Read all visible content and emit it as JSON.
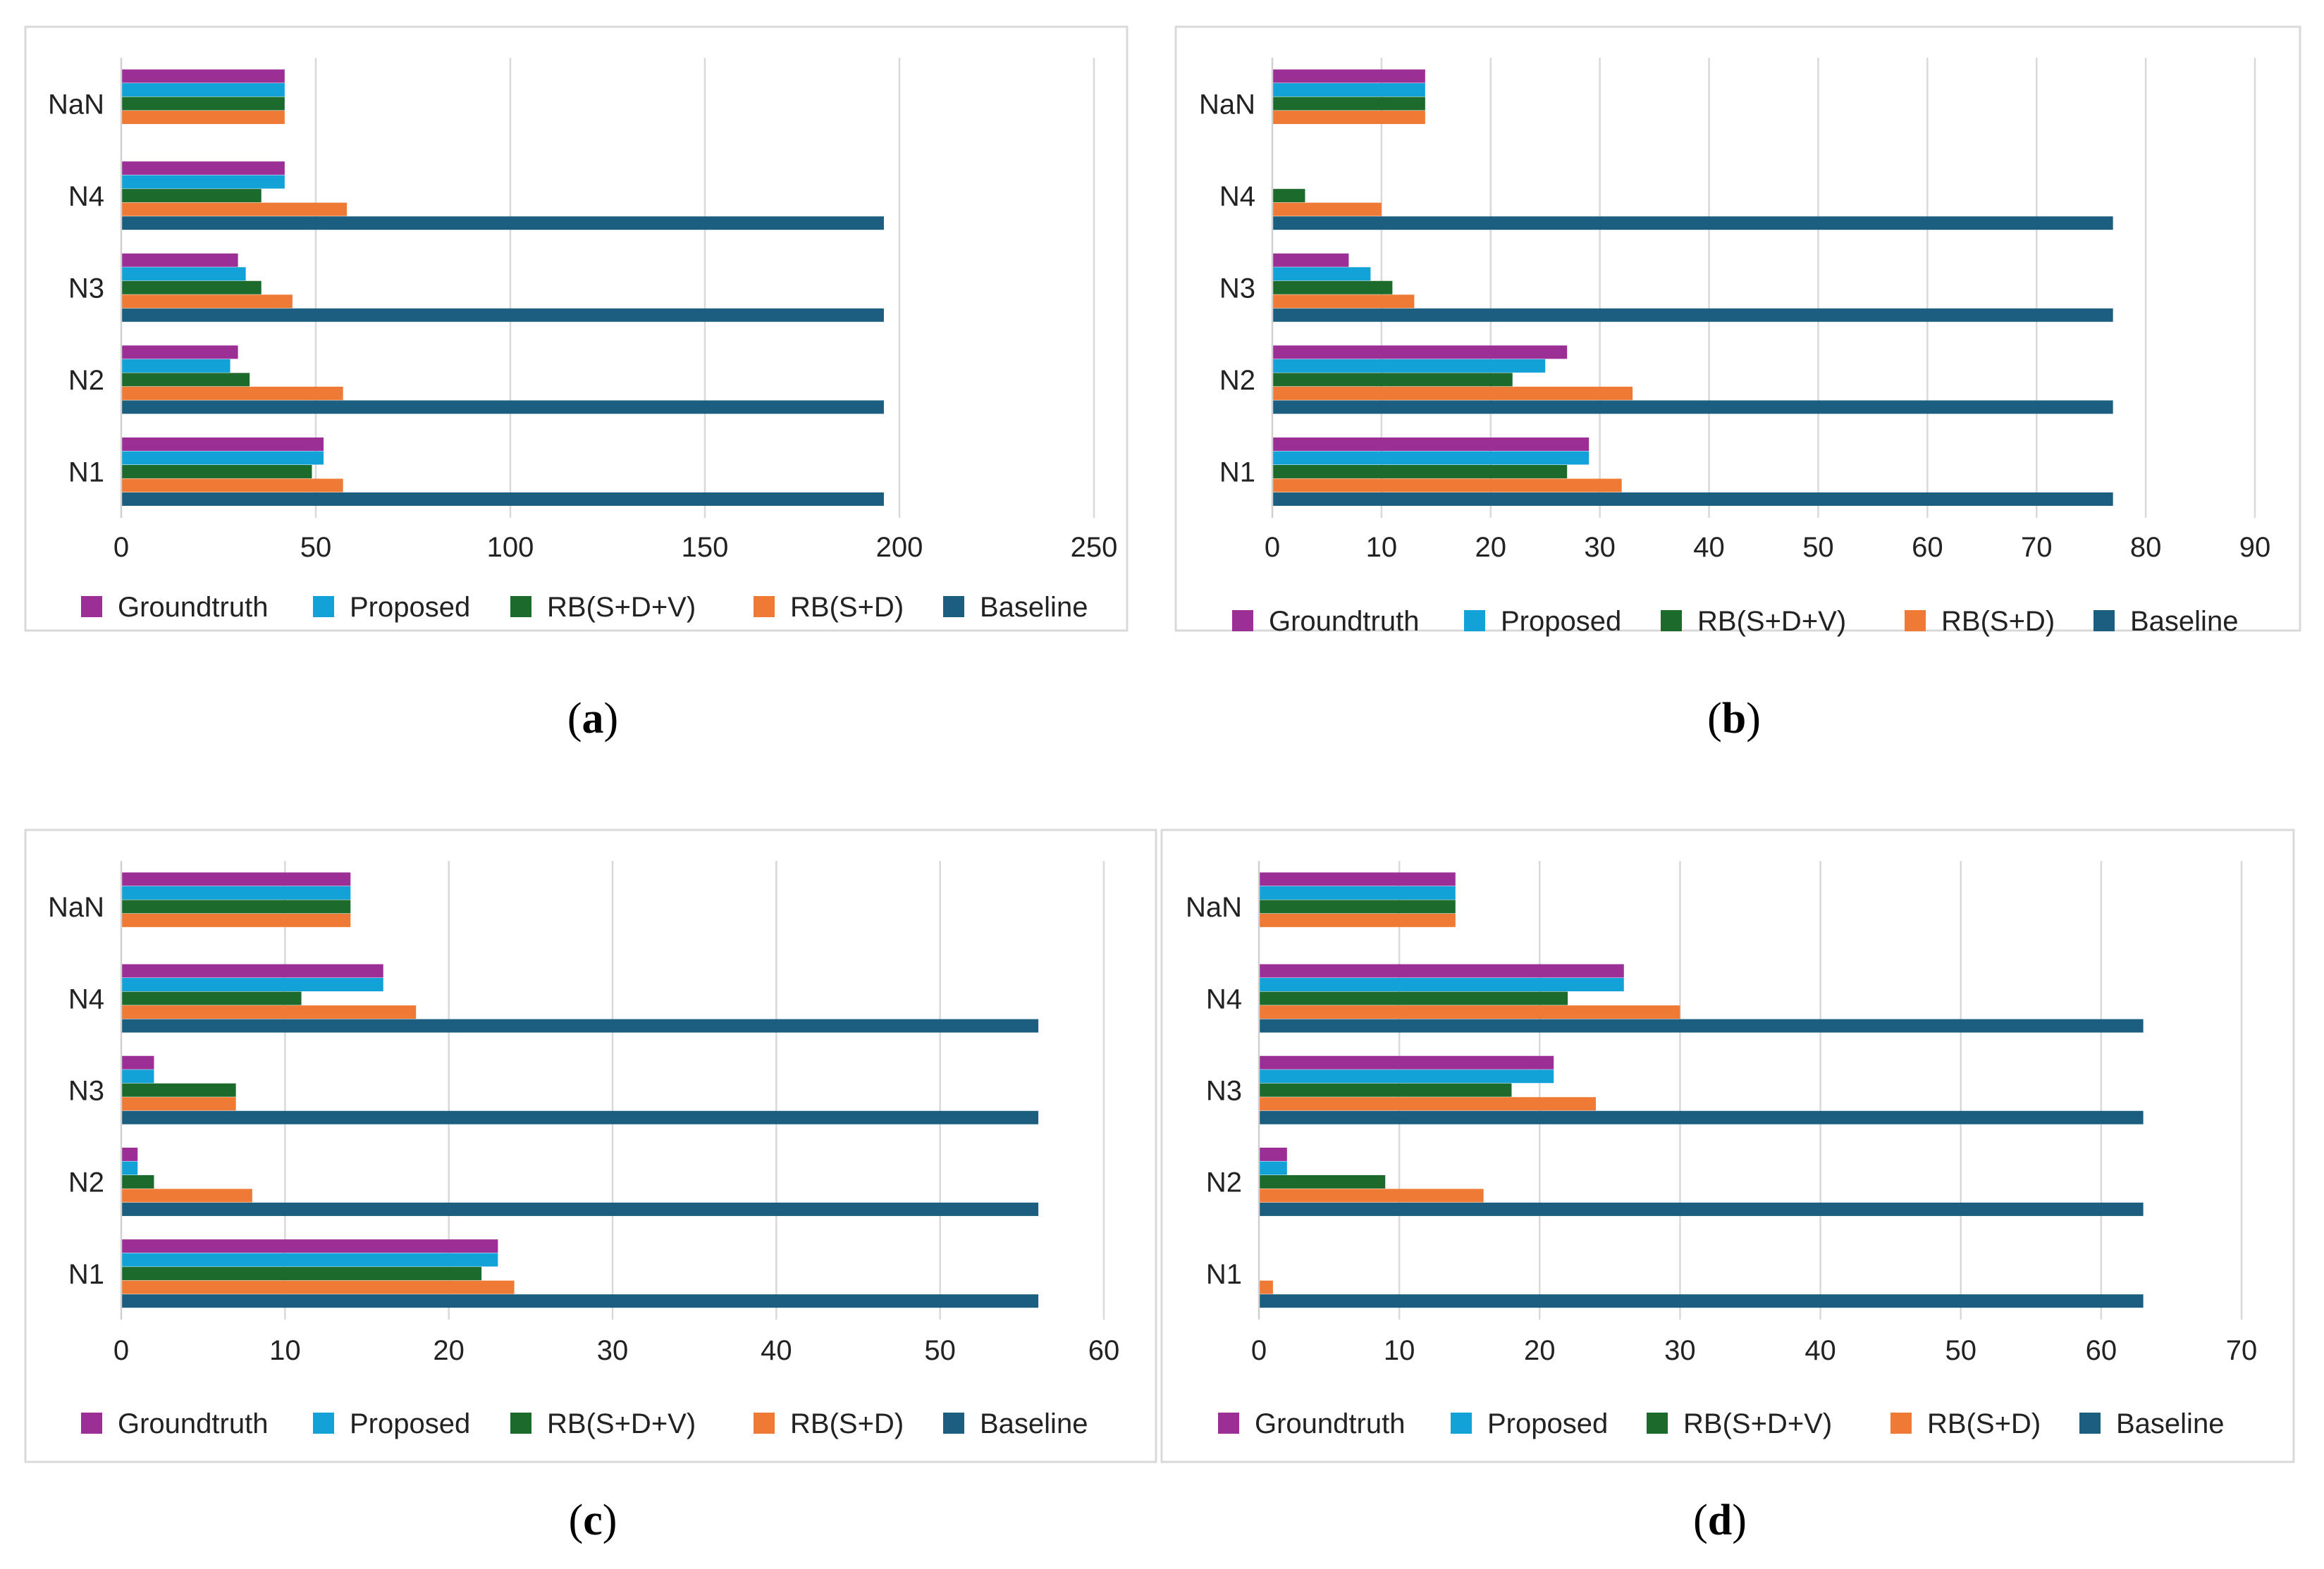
{
  "legend_colors": {
    "Groundtruth": "#9B2F95",
    "Proposed": "#12A2D8",
    "RB(S+D+V)": "#1C6B2C",
    "RB(S+D)": "#EE7A35",
    "Baseline": "#1B5E80"
  },
  "chart_data": [
    {
      "panel": "a",
      "caption_letter": "a",
      "type": "bar",
      "orientation": "horizontal",
      "categories": [
        "NaN",
        "N4",
        "N3",
        "N2",
        "N1"
      ],
      "series": [
        {
          "name": "Groundtruth",
          "values": [
            42,
            42,
            30,
            30,
            52
          ]
        },
        {
          "name": "Proposed",
          "values": [
            42,
            42,
            32,
            28,
            52
          ]
        },
        {
          "name": "RB(S+D+V)",
          "values": [
            42,
            36,
            36,
            33,
            49
          ]
        },
        {
          "name": "RB(S+D)",
          "values": [
            42,
            58,
            44,
            57,
            57
          ]
        },
        {
          "name": "Baseline",
          "values": [
            null,
            196,
            196,
            196,
            196
          ]
        }
      ],
      "xlim": [
        0,
        250
      ],
      "xticks": [
        "0",
        "50",
        "100",
        "150",
        "200",
        "250"
      ],
      "grid": true,
      "legend_position": "bottom"
    },
    {
      "panel": "b",
      "caption_letter": "b",
      "type": "bar",
      "orientation": "horizontal",
      "categories": [
        "NaN",
        "N4",
        "N3",
        "N2",
        "N1"
      ],
      "series": [
        {
          "name": "Groundtruth",
          "values": [
            14,
            0,
            7,
            27,
            29
          ]
        },
        {
          "name": "Proposed",
          "values": [
            14,
            0,
            9,
            25,
            29
          ]
        },
        {
          "name": "RB(S+D+V)",
          "values": [
            14,
            3,
            11,
            22,
            27
          ]
        },
        {
          "name": "RB(S+D)",
          "values": [
            14,
            10,
            13,
            33,
            32
          ]
        },
        {
          "name": "Baseline",
          "values": [
            null,
            77,
            77,
            77,
            77
          ]
        }
      ],
      "xlim": [
        0,
        90
      ],
      "xticks": [
        "0",
        "10",
        "20",
        "30",
        "40",
        "50",
        "60",
        "70",
        "80",
        "90"
      ],
      "grid": true,
      "legend_position": "bottom"
    },
    {
      "panel": "c",
      "caption_letter": "c",
      "type": "bar",
      "orientation": "horizontal",
      "categories": [
        "NaN",
        "N4",
        "N3",
        "N2",
        "N1"
      ],
      "series": [
        {
          "name": "Groundtruth",
          "values": [
            14,
            16,
            2,
            1,
            23
          ]
        },
        {
          "name": "Proposed",
          "values": [
            14,
            16,
            2,
            1,
            23
          ]
        },
        {
          "name": "RB(S+D+V)",
          "values": [
            14,
            11,
            7,
            2,
            22
          ]
        },
        {
          "name": "RB(S+D)",
          "values": [
            14,
            18,
            7,
            8,
            24
          ]
        },
        {
          "name": "Baseline",
          "values": [
            null,
            56,
            56,
            56,
            56
          ]
        }
      ],
      "xlim": [
        0,
        60
      ],
      "xticks": [
        "0",
        "10",
        "20",
        "30",
        "40",
        "50",
        "60"
      ],
      "grid": true,
      "legend_position": "bottom"
    },
    {
      "panel": "d",
      "caption_letter": "d",
      "type": "bar",
      "orientation": "horizontal",
      "categories": [
        "NaN",
        "N4",
        "N3",
        "N2",
        "N1"
      ],
      "series": [
        {
          "name": "Groundtruth",
          "values": [
            14,
            26,
            21,
            2,
            0
          ]
        },
        {
          "name": "Proposed",
          "values": [
            14,
            26,
            21,
            2,
            0
          ]
        },
        {
          "name": "RB(S+D+V)",
          "values": [
            14,
            22,
            18,
            9,
            0
          ]
        },
        {
          "name": "RB(S+D)",
          "values": [
            14,
            30,
            24,
            16,
            1
          ]
        },
        {
          "name": "Baseline",
          "values": [
            null,
            63,
            63,
            63,
            63
          ]
        }
      ],
      "xlim": [
        0,
        70
      ],
      "xticks": [
        "0",
        "10",
        "20",
        "30",
        "40",
        "50",
        "60",
        "70"
      ],
      "grid": true,
      "legend_position": "bottom"
    }
  ]
}
